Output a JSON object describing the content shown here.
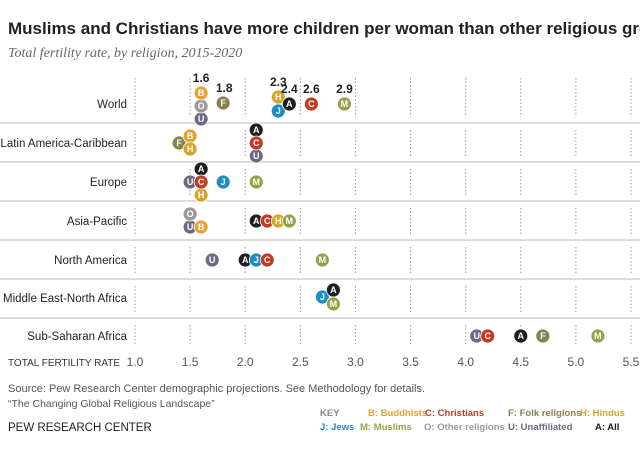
{
  "title": "Muslims and Christians have more children per woman than other religious groups",
  "subtitle": "Total fertility rate, by religion, 2015-2020",
  "source_line1": "Source: Pew Research Center demographic projections. See Methodology for details.",
  "source_line2": "“The Changing Global Religious Landscape”",
  "org": "PEW RESEARCH CENTER",
  "key": {
    "title": "KEY",
    "items": [
      {
        "code": "B",
        "label": "B: Buddhists",
        "color": "#e8a033"
      },
      {
        "code": "C",
        "label": "C: Christians",
        "color": "#c23b22"
      },
      {
        "code": "F",
        "label": "F: Folk religions",
        "color": "#8a8150"
      },
      {
        "code": "H",
        "label": "H: Hindus",
        "color": "#d4a52c"
      },
      {
        "code": "J",
        "label": "J: Jews",
        "color": "#1b8fc4"
      },
      {
        "code": "M",
        "label": "M: Muslims",
        "color": "#98a048"
      },
      {
        "code": "O",
        "label": "O: Other religions",
        "color": "#9b9b9b"
      },
      {
        "code": "U",
        "label": "U: Unaffiliated",
        "color": "#6e6880"
      },
      {
        "code": "A",
        "label": "A: All",
        "color": "#1f1f1f"
      }
    ]
  },
  "chart_data": {
    "type": "scatter",
    "title": "Muslims and Christians have more children per woman than other religious groups",
    "subtitle": "Total fertility rate, by religion, 2015-2020",
    "xlabel": "TOTAL FERTILITY RATE",
    "xlim": [
      1.0,
      5.5
    ],
    "xticks": [
      "1.0",
      "1.5",
      "2.0",
      "2.5",
      "3.0",
      "3.5",
      "4.0",
      "4.5",
      "5.0",
      "5.5"
    ],
    "grid": "vertical dotted",
    "regions": [
      {
        "name": "World",
        "values": {
          "B": 1.6,
          "O": 1.6,
          "U": 1.6,
          "F": 1.8,
          "H": 2.3,
          "J": 2.3,
          "A": 2.4,
          "C": 2.6,
          "M": 2.9
        },
        "data_labels": [
          {
            "code": "B",
            "text": "1.6"
          },
          {
            "code": "F",
            "text": "1.8"
          },
          {
            "code": "H",
            "text": "2.3"
          },
          {
            "code": "A",
            "text": "2.4"
          },
          {
            "code": "C",
            "text": "2.6"
          },
          {
            "code": "M",
            "text": "2.9"
          }
        ]
      },
      {
        "name": "Latin America-Caribbean",
        "values": {
          "F": 1.4,
          "B": 1.5,
          "H": 1.5,
          "A": 2.1,
          "C": 2.1,
          "U": 2.1
        }
      },
      {
        "name": "Europe",
        "values": {
          "U": 1.5,
          "A": 1.6,
          "C": 1.6,
          "H": 1.6,
          "J": 1.8,
          "M": 2.1
        }
      },
      {
        "name": "Asia-Pacific",
        "values": {
          "O": 1.5,
          "U": 1.5,
          "B": 1.6,
          "A": 2.1,
          "C": 2.2,
          "H": 2.3,
          "M": 2.4
        }
      },
      {
        "name": "North America",
        "values": {
          "U": 1.7,
          "A": 2.0,
          "J": 2.1,
          "C": 2.2,
          "M": 2.7
        }
      },
      {
        "name": "Middle East-North Africa",
        "values": {
          "J": 2.7,
          "A": 2.8,
          "M": 2.8
        }
      },
      {
        "name": "Sub-Saharan Africa",
        "values": {
          "U": 4.1,
          "C": 4.2,
          "A": 4.5,
          "F": 4.7,
          "M": 5.2
        }
      }
    ]
  }
}
